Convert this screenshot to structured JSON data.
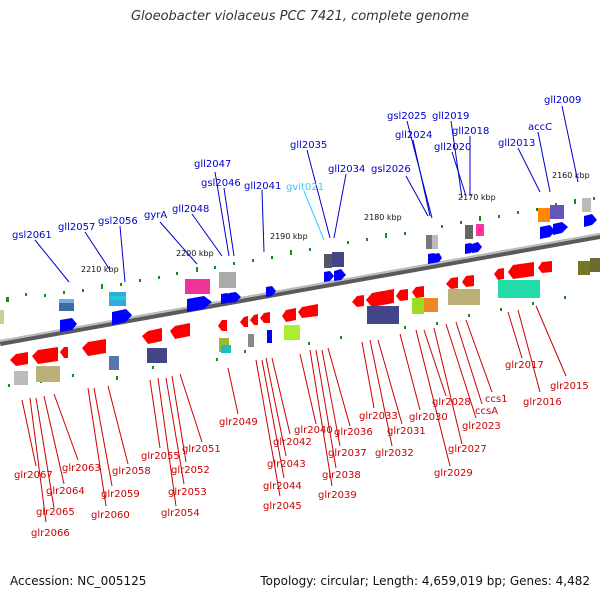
{
  "title": "Gloeobacter violaceus PCC 7421, complete genome",
  "footer": {
    "accession": "Accession: NC_005125",
    "summary": "Topology: circular; Length: 4,659,019 bp; Genes: 4,482"
  },
  "colors": {
    "backbone": "#8a8a8a",
    "forward_label": "#0000cc",
    "reverse_label": "#cc0000",
    "trna_label": "#33ccff",
    "forward_arrow": "#0000ff",
    "reverse_arrow": "#ff0000",
    "tick": "#1a8a1a"
  },
  "scale_labels": [
    "2210 kbp",
    "2200 kbp",
    "2190 kbp",
    "2180 kbp",
    "2170 kbp",
    "2160 kbp"
  ],
  "forward_gene_labels": [
    "gsl2061",
    "gll2057",
    "gsl2056",
    "gyrA",
    "gll2048",
    "gll2047",
    "gsl2046",
    "gll2041",
    "gvit021",
    "gll2035",
    "gll2034",
    "gsl2026",
    "gsl2025",
    "gll2024",
    "gll2019",
    "gll2020",
    "gll2018",
    "gll2013",
    "accC",
    "gll2009"
  ],
  "reverse_gene_labels": [
    "glr2067",
    "glr2066",
    "glr2065",
    "glr2064",
    "glr2063",
    "glr2060",
    "glr2059",
    "glr2058",
    "glr2055",
    "glr2054",
    "glr2053",
    "glr2052",
    "glr2051",
    "glr2049",
    "glr2045",
    "glr2044",
    "glr2043",
    "glr2042",
    "glr2040",
    "glr2039",
    "glr2038",
    "glr2037",
    "glr2036",
    "glr2033",
    "glr2032",
    "glr2031",
    "glr2030",
    "glr2029",
    "glr2028",
    "glr2027",
    "glr2023",
    "ccsA",
    "ccs1",
    "glr2017",
    "glr2016",
    "glr2015"
  ]
}
